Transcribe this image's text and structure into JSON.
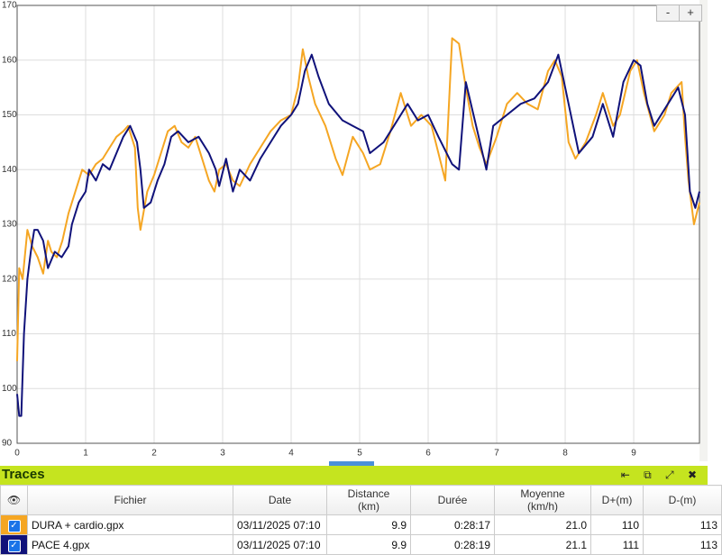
{
  "chart_data": {
    "type": "line",
    "xlim": [
      0,
      9.96
    ],
    "ylim": [
      90,
      170
    ],
    "xticks": [
      0,
      1,
      2,
      3,
      4,
      5,
      6,
      7,
      8,
      9
    ],
    "yticks": [
      90,
      100,
      110,
      120,
      130,
      140,
      150,
      160,
      170
    ],
    "grid": true,
    "series": [
      {
        "color": "#f5a623",
        "x": [
          0,
          0.03,
          0.08,
          0.15,
          0.22,
          0.3,
          0.38,
          0.45,
          0.5,
          0.58,
          0.66,
          0.75,
          0.85,
          0.95,
          1.05,
          1.15,
          1.25,
          1.35,
          1.45,
          1.55,
          1.62,
          1.72,
          1.76,
          1.8,
          1.9,
          2.0,
          2.1,
          2.2,
          2.3,
          2.4,
          2.5,
          2.6,
          2.7,
          2.8,
          2.88,
          2.95,
          3.05,
          3.15,
          3.25,
          3.4,
          3.55,
          3.7,
          3.85,
          4.0,
          4.1,
          4.17,
          4.25,
          4.35,
          4.5,
          4.65,
          4.75,
          4.9,
          5.05,
          5.15,
          5.3,
          5.45,
          5.6,
          5.75,
          5.9,
          6.05,
          6.15,
          6.25,
          6.35,
          6.45,
          6.55,
          6.65,
          6.75,
          6.85,
          7.0,
          7.15,
          7.3,
          7.45,
          7.6,
          7.75,
          7.85,
          7.95,
          8.05,
          8.15,
          8.3,
          8.45,
          8.55,
          8.7,
          8.8,
          8.95,
          9.05,
          9.15,
          9.3,
          9.45,
          9.55,
          9.7,
          9.75,
          9.8,
          9.88,
          9.96
        ],
        "values": [
          105,
          122,
          120,
          129,
          126,
          124,
          121,
          127,
          125,
          124,
          127,
          132,
          136,
          140,
          139,
          141,
          142,
          144,
          146,
          147,
          148,
          144,
          133,
          129,
          136,
          139,
          143,
          147,
          148,
          145,
          144,
          146,
          142,
          138,
          136,
          140,
          141,
          138,
          137,
          141,
          144,
          147,
          149,
          150,
          155,
          162,
          157,
          152,
          148,
          142,
          139,
          146,
          143,
          140,
          141,
          147,
          154,
          148,
          150,
          148,
          143,
          138,
          164,
          163,
          155,
          148,
          144,
          141,
          146,
          152,
          154,
          152,
          151,
          158,
          160,
          157,
          145,
          142,
          145,
          150,
          154,
          148,
          150,
          158,
          160,
          154,
          147,
          150,
          154,
          156,
          146,
          138,
          130,
          134
        ]
      },
      {
        "color": "#10127a",
        "x": [
          0,
          0.03,
          0.06,
          0.1,
          0.15,
          0.2,
          0.25,
          0.3,
          0.38,
          0.45,
          0.55,
          0.65,
          0.75,
          0.8,
          0.9,
          1.0,
          1.05,
          1.15,
          1.25,
          1.35,
          1.45,
          1.55,
          1.65,
          1.75,
          1.8,
          1.85,
          1.95,
          2.05,
          2.15,
          2.25,
          2.35,
          2.5,
          2.65,
          2.8,
          2.9,
          2.95,
          3.05,
          3.15,
          3.25,
          3.4,
          3.55,
          3.7,
          3.85,
          4.0,
          4.1,
          4.2,
          4.3,
          4.4,
          4.55,
          4.75,
          4.9,
          5.05,
          5.15,
          5.35,
          5.5,
          5.7,
          5.85,
          6.0,
          6.15,
          6.35,
          6.45,
          6.55,
          6.7,
          6.85,
          6.95,
          7.15,
          7.35,
          7.55,
          7.75,
          7.9,
          8.05,
          8.2,
          8.4,
          8.55,
          8.7,
          8.85,
          9.0,
          9.1,
          9.2,
          9.3,
          9.5,
          9.65,
          9.75,
          9.82,
          9.9,
          9.96
        ],
        "values": [
          99,
          95,
          95,
          110,
          120,
          125,
          129,
          129,
          127,
          122,
          125,
          124,
          126,
          130,
          134,
          136,
          140,
          138,
          141,
          140,
          143,
          146,
          148,
          145,
          140,
          133,
          134,
          138,
          141,
          146,
          147,
          145,
          146,
          143,
          140,
          137,
          142,
          136,
          140,
          138,
          142,
          145,
          148,
          150,
          152,
          158,
          161,
          157,
          152,
          149,
          148,
          147,
          143,
          145,
          148,
          152,
          149,
          150,
          146,
          141,
          140,
          156,
          148,
          140,
          148,
          150,
          152,
          153,
          156,
          161,
          152,
          143,
          146,
          152,
          146,
          156,
          160,
          159,
          152,
          148,
          152,
          155,
          150,
          136,
          133,
          136
        ]
      }
    ]
  },
  "zoom": {
    "minus": "-",
    "plus": "+"
  },
  "panel": {
    "title": "Traces"
  },
  "table": {
    "headers": [
      [
        "Fichier"
      ],
      [
        "Date"
      ],
      [
        "Distance",
        "(km)"
      ],
      [
        "Durée"
      ],
      [
        "Moyenne",
        "(km/h)"
      ],
      [
        "D+(m)"
      ],
      [
        "D-(m)"
      ]
    ],
    "rows": [
      [
        "DURA + cardio.gpx",
        "03/11/2025 07:10",
        "9.9",
        "0:28:17",
        "21.0",
        "110",
        "113"
      ],
      [
        "PACE 4.gpx",
        "03/11/2025 07:10",
        "9.9",
        "0:28:19",
        "21.1",
        "111",
        "113"
      ]
    ]
  }
}
